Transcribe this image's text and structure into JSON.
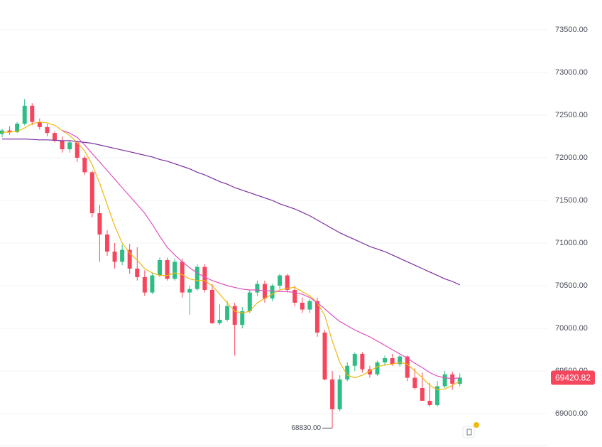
{
  "chart_data": {
    "type": "candlestick",
    "up_color": "#2ebd85",
    "down_color": "#f6465d",
    "ylim": [
      68608,
      73850
    ],
    "yticks": [
      {
        "value": 69000,
        "label": "69000.00"
      },
      {
        "value": 69500,
        "label": "69500.00"
      },
      {
        "value": 70000,
        "label": "70000.00"
      },
      {
        "value": 70500,
        "label": "70500.00"
      },
      {
        "value": 71000,
        "label": "71000.00"
      },
      {
        "value": 71500,
        "label": "71500.00"
      },
      {
        "value": 72000,
        "label": "72000.00"
      },
      {
        "value": 72500,
        "label": "72500.00"
      },
      {
        "value": 73000,
        "label": "73000.00"
      },
      {
        "value": 73500,
        "label": "73500.00"
      }
    ],
    "grid": true,
    "open": [
      72280,
      72320,
      72300,
      72400,
      72610,
      72420,
      72360,
      72290,
      72200,
      72100,
      72180,
      72000,
      71830,
      71350,
      71100,
      70900,
      70780,
      70920,
      70700,
      70600,
      70420,
      70620,
      70800,
      70580,
      70780,
      70420,
      70460,
      70720,
      70450,
      70060,
      70100,
      70260,
      70040,
      70200,
      70420,
      70520,
      70350,
      70500,
      70620,
      70450,
      70300,
      70220,
      70320,
      69950,
      69400,
      69050,
      69400,
      69560,
      69700,
      69520,
      69460,
      69600,
      69650,
      69580,
      69670,
      69420,
      69300,
      69150,
      69100,
      69320,
      69460,
      69350
    ],
    "high": [
      72340,
      72370,
      72420,
      72690,
      72640,
      72460,
      72400,
      72310,
      72250,
      72210,
      72200,
      72020,
      71850,
      71450,
      71150,
      71000,
      70980,
      70990,
      70950,
      70680,
      70650,
      70830,
      70830,
      70820,
      70820,
      70500,
      70750,
      70750,
      70520,
      70280,
      70320,
      70300,
      70250,
      70450,
      70560,
      70560,
      70520,
      70640,
      70640,
      70500,
      70360,
      70340,
      70360,
      69980,
      69500,
      69450,
      69600,
      69720,
      69720,
      69560,
      69620,
      69680,
      69700,
      69690,
      69680,
      69530,
      69480,
      69360,
      69380,
      69500,
      69490,
      69470
    ],
    "low": [
      72240,
      72270,
      72290,
      72380,
      72380,
      72330,
      72250,
      72180,
      72060,
      72060,
      71950,
      71800,
      71300,
      70780,
      70850,
      70700,
      70740,
      70640,
      70560,
      70380,
      70400,
      70600,
      70560,
      70560,
      70360,
      70160,
      70440,
      70420,
      70050,
      70040,
      70080,
      69680,
      70000,
      70180,
      70380,
      70300,
      70320,
      70460,
      70420,
      70260,
      70180,
      70180,
      69900,
      69390,
      68830,
      69030,
      69380,
      69500,
      69480,
      69420,
      69440,
      69560,
      69560,
      69550,
      69380,
      69280,
      69150,
      69080,
      69080,
      69300,
      69280,
      69320
    ],
    "close": [
      72320,
      72300,
      72400,
      72610,
      72420,
      72360,
      72290,
      72200,
      72100,
      72180,
      72000,
      71830,
      71350,
      71100,
      70900,
      70780,
      70920,
      70700,
      70600,
      70420,
      70620,
      70800,
      70580,
      70780,
      70420,
      70460,
      70720,
      70450,
      70060,
      70100,
      70260,
      70040,
      70200,
      70420,
      70520,
      70350,
      70500,
      70620,
      70450,
      70300,
      70220,
      70320,
      69950,
      69400,
      69050,
      69400,
      69560,
      69700,
      69520,
      69460,
      69600,
      69650,
      69580,
      69670,
      69420,
      69300,
      69150,
      69100,
      69320,
      69460,
      69350,
      69420.82
    ],
    "lines": [
      {
        "color": "#f0b90b",
        "values": [
          72300,
          72300,
          72310,
          72350,
          72400,
          72420,
          72410,
          72380,
          72320,
          72260,
          72180,
          72080,
          71920,
          71700,
          71450,
          71200,
          71000,
          70880,
          70800,
          70700,
          70650,
          70620,
          70620,
          70650,
          70630,
          70580,
          70560,
          70560,
          70500,
          70400,
          70300,
          70200,
          70180,
          70200,
          70300,
          70350,
          70400,
          70450,
          70470,
          70480,
          70430,
          70380,
          70300,
          70150,
          69850,
          69600,
          69450,
          69420,
          69450,
          69500,
          69550,
          69570,
          69580,
          69600,
          69580,
          69500,
          69420,
          69330,
          69280,
          69290,
          69330,
          69380
        ]
      },
      {
        "color": "#e04fc0",
        "values": [
          null,
          null,
          null,
          null,
          null,
          null,
          null,
          null,
          72320,
          72290,
          72240,
          72150,
          72050,
          71950,
          71850,
          71750,
          71650,
          71550,
          71450,
          71350,
          71220,
          71080,
          70950,
          70860,
          70780,
          70710,
          70650,
          70600,
          70560,
          70530,
          70500,
          70480,
          70460,
          70450,
          70450,
          70440,
          70440,
          70430,
          70430,
          70420,
          70400,
          70360,
          70300,
          70230,
          70150,
          70080,
          70030,
          69980,
          69940,
          69900,
          69850,
          69800,
          69750,
          69700,
          69650,
          69590,
          69540,
          69480,
          69440,
          69420,
          69410,
          69420
        ]
      },
      {
        "color": "#7b2d9e",
        "values": [
          72220,
          72220,
          72220,
          72220,
          72215,
          72210,
          72210,
          72205,
          72200,
          72200,
          72190,
          72180,
          72170,
          72150,
          72130,
          72110,
          72090,
          72070,
          72050,
          72030,
          72010,
          71980,
          71960,
          71930,
          71900,
          71870,
          71830,
          71800,
          71760,
          71720,
          71690,
          71650,
          71620,
          71590,
          71560,
          71530,
          71500,
          71460,
          71430,
          71400,
          71360,
          71320,
          71270,
          71220,
          71170,
          71120,
          71080,
          71040,
          71000,
          70960,
          70930,
          70900,
          70860,
          70820,
          70780,
          70740,
          70700,
          70660,
          70620,
          70580,
          70550,
          70510
        ]
      }
    ],
    "low_label": {
      "value": 68830,
      "label": "68830.00"
    },
    "last_price": {
      "value": 69420.82,
      "label": "69420.82"
    }
  }
}
